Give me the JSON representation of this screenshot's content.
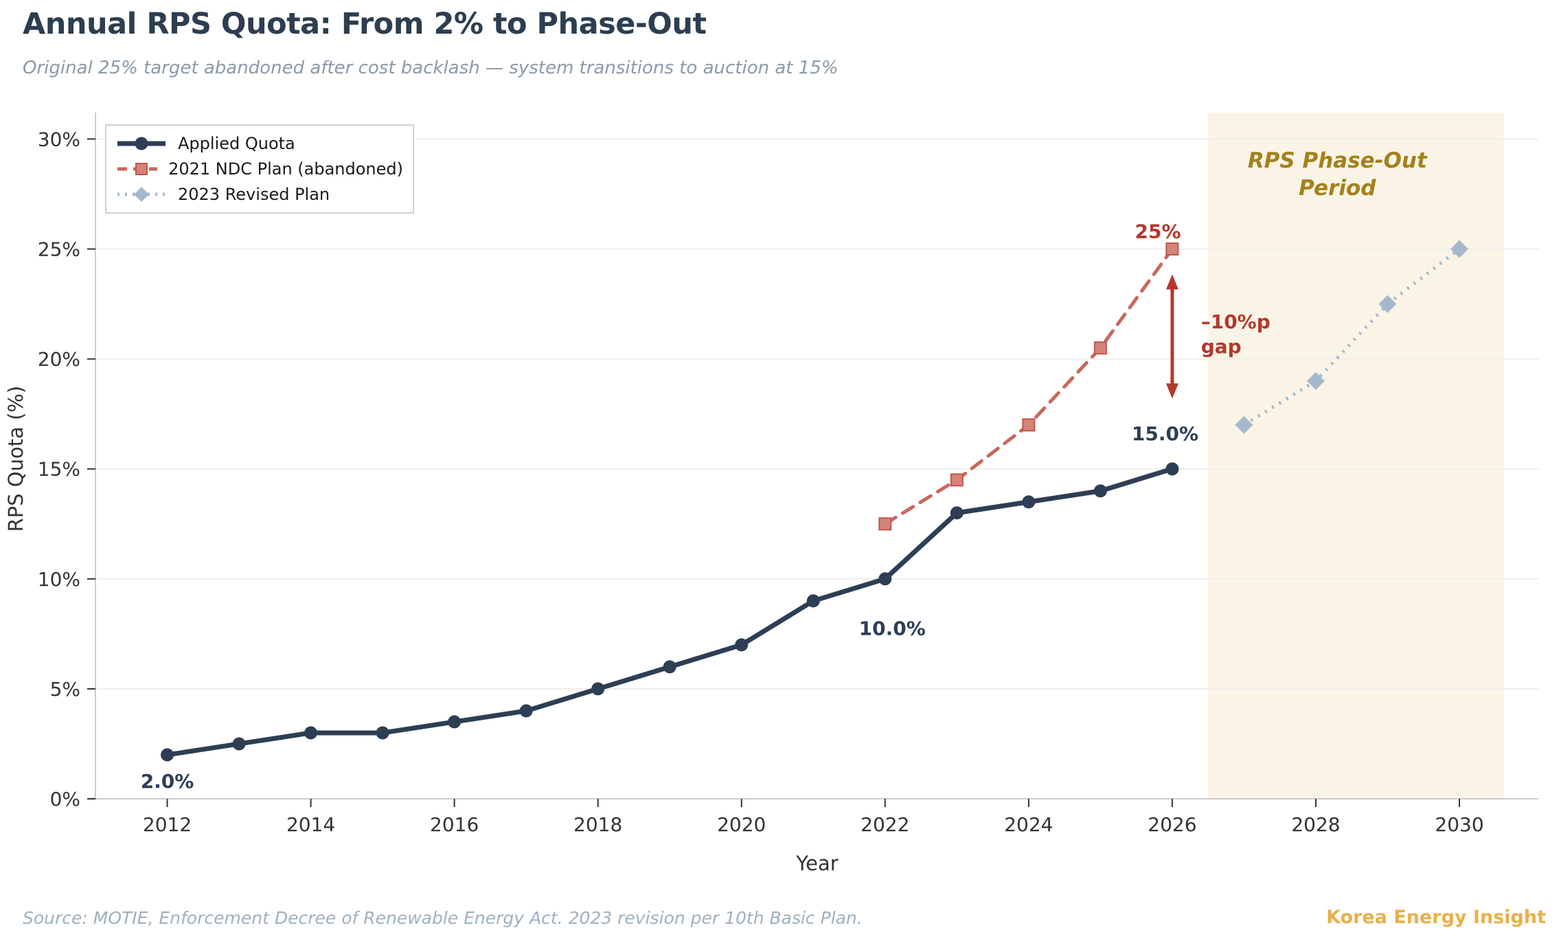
{
  "header": {
    "title": "Annual RPS Quota: From 2% to Phase-Out",
    "subtitle": "Original 25% target abandoned after cost backlash — system transitions to auction at 15%"
  },
  "footer": {
    "source": "Source: MOTIE, Enforcement Decree of Renewable Energy Act. 2023 revision per 10th Basic Plan.",
    "brand": "Korea Energy Insight"
  },
  "chart_data": {
    "type": "line",
    "xlabel": "Year",
    "ylabel": "RPS Quota (%)",
    "xlim": [
      2011,
      2031.1
    ],
    "ylim": [
      0,
      31.2
    ],
    "xticks": [
      2012,
      2014,
      2016,
      2018,
      2020,
      2022,
      2024,
      2026,
      2028,
      2030
    ],
    "yticks": [
      0,
      5,
      10,
      15,
      20,
      25,
      30
    ],
    "ytick_labels": [
      "0%",
      "5%",
      "10%",
      "15%",
      "20%",
      "25%",
      "30%"
    ],
    "grid": "horizontal",
    "legend_position": "upper left",
    "series": [
      {
        "name": "Applied Quota",
        "line_style": "solid",
        "marker": "circle",
        "color": "#2d3e55",
        "marker_color": "#2d3e55",
        "x": [
          2012,
          2013,
          2014,
          2015,
          2016,
          2017,
          2018,
          2019,
          2020,
          2021,
          2022,
          2023,
          2024,
          2025,
          2026
        ],
        "values": [
          2.0,
          2.5,
          3.0,
          3.0,
          3.5,
          4.0,
          5.0,
          6.0,
          7.0,
          9.0,
          10.0,
          13.0,
          13.5,
          14.0,
          15.0
        ]
      },
      {
        "name": "2021 NDC Plan (abandoned)",
        "line_style": "dashed",
        "marker": "square",
        "color": "#c9685c",
        "marker_color": "#d4837a",
        "marker_edge": "#c0564a",
        "x": [
          2022,
          2023,
          2024,
          2025,
          2026
        ],
        "values": [
          12.5,
          14.5,
          17.0,
          20.5,
          25.0
        ]
      },
      {
        "name": "2023 Revised Plan",
        "line_style": "dotted",
        "marker": "diamond",
        "color": "#a6b9cc",
        "marker_color": "#a6b9cc",
        "x": [
          2027,
          2028,
          2029,
          2030
        ],
        "values": [
          17.0,
          19.0,
          22.5,
          25.0
        ]
      }
    ],
    "phase_out_band": {
      "x_start": 2026.5,
      "x_end": 2030.62,
      "fill": "#faf4e6",
      "label": "RPS Phase-Out\nPeriod",
      "label_x": 2028.3,
      "label_y": 28.7,
      "label_color": "#a3811c"
    },
    "gap_arrow": {
      "x": 2026.0,
      "y_start": 23.85,
      "y_end": 18.2,
      "color": "#b5382c"
    },
    "annotations": [
      {
        "id": "label-2012-value",
        "text": "2.0%",
        "x": 2012.0,
        "y": 0.5,
        "anchor": "middle",
        "color": "#2d3e55",
        "size": 28,
        "weight": "bold",
        "style": "normal",
        "line_height": 36
      },
      {
        "id": "label-2022-value",
        "text": "10.0%",
        "x": 2022.1,
        "y": 7.45,
        "anchor": "middle",
        "color": "#2d3e55",
        "size": 28,
        "weight": "bold",
        "style": "normal",
        "line_height": 36
      },
      {
        "id": "label-2026-value",
        "text": "15.0%",
        "x": 2025.9,
        "y": 16.3,
        "anchor": "middle",
        "color": "#2d3e55",
        "size": 28,
        "weight": "bold",
        "style": "normal",
        "line_height": 36
      },
      {
        "id": "label-ndc-peak",
        "text": "25%",
        "x": 2025.8,
        "y": 25.5,
        "anchor": "middle",
        "color": "#b5382c",
        "size": 28,
        "weight": "bold",
        "style": "normal",
        "line_height": 36
      },
      {
        "id": "label-gap",
        "text": "–10%p\ngap",
        "x": 2026.4,
        "y": 21.4,
        "anchor": "start",
        "color": "#b5382c",
        "size": 28,
        "weight": "bold",
        "style": "normal",
        "line_height": 36
      }
    ],
    "axis_color": "#333333",
    "spine_color": "#cccccc",
    "grid_color": "#f0eeea"
  }
}
